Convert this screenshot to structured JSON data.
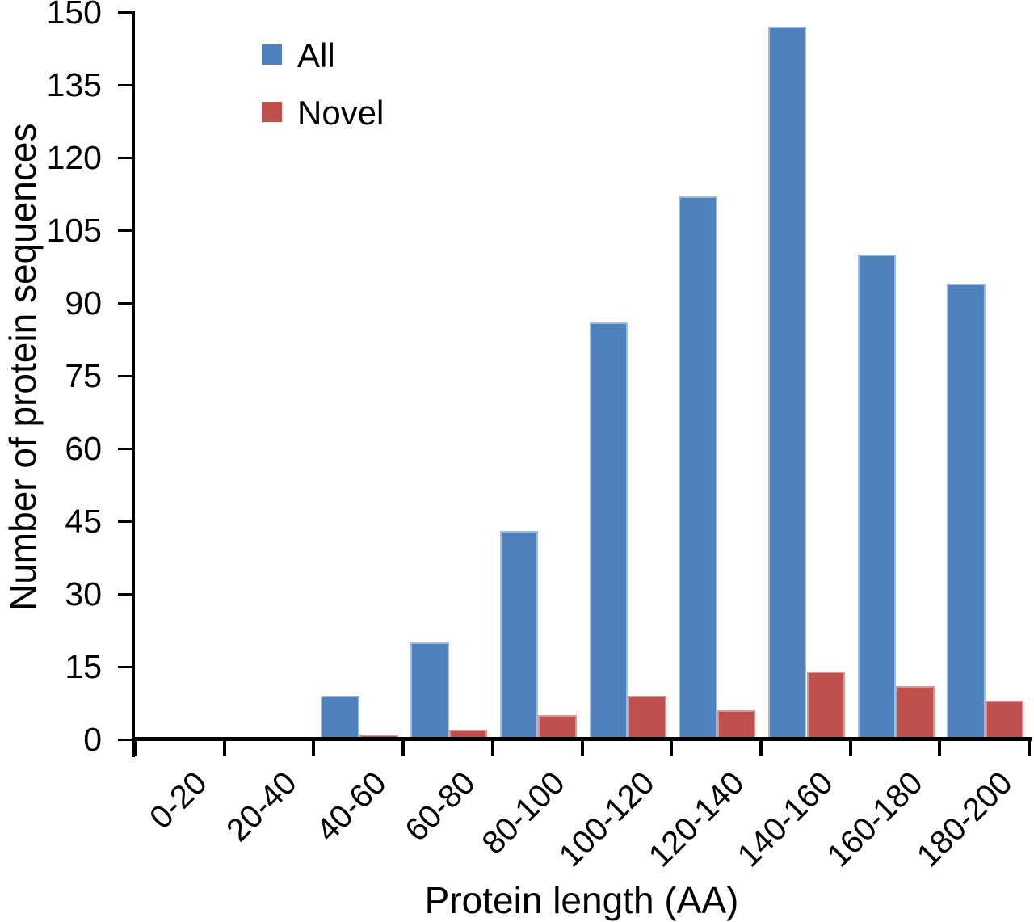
{
  "chart_data": {
    "type": "bar",
    "title": "",
    "xlabel": "Protein length (AA)",
    "ylabel": "Number of protein sequences",
    "categories": [
      "0-20",
      "20-40",
      "40-60",
      "60-80",
      "80-100",
      "100-120",
      "120-140",
      "140-160",
      "160-180",
      "180-200"
    ],
    "series": [
      {
        "name": "All",
        "color": "#4f81bd",
        "edge_color": "#a0bbdc",
        "values": [
          0,
          0,
          9,
          20,
          43,
          86,
          112,
          147,
          100,
          94
        ]
      },
      {
        "name": "Novel",
        "color": "#c0504d",
        "edge_color": "#d69removed795",
        "values": [
          0,
          0,
          1,
          2,
          5,
          9,
          6,
          14,
          11,
          8
        ]
      }
    ],
    "ylim": [
      0,
      150
    ],
    "yticks": [
      0,
      15,
      30,
      45,
      60,
      75,
      90,
      105,
      120,
      135,
      150
    ],
    "grid": false,
    "legend_position": "upper-left-inside",
    "axis_color": "#000000",
    "background_color": "#ffffff"
  }
}
